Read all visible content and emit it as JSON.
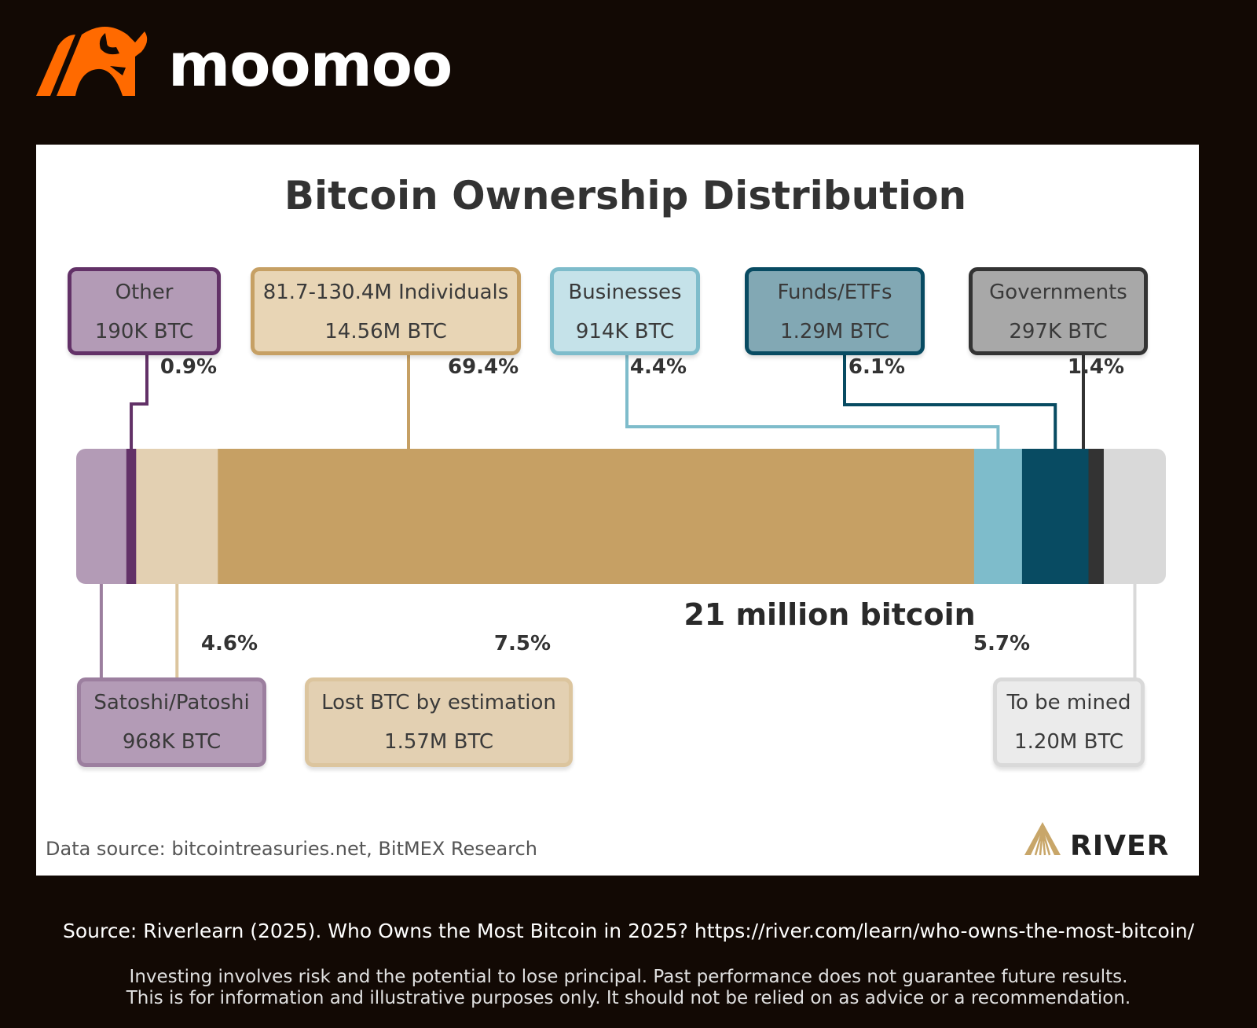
{
  "brand": {
    "name": "moomoo",
    "accent": "#FF6A00"
  },
  "chart_data": {
    "type": "bar",
    "orientation": "horizontal-stacked",
    "title": "Bitcoin Ownership Distribution",
    "total_label": "21 million bitcoin",
    "segments": [
      {
        "name": "Satoshi/Patoshi",
        "amount": "968K BTC",
        "percent": 4.6,
        "percent_label": "4.6%",
        "color": "#B39BB6",
        "border": "#9C7F9F",
        "position": "bottom"
      },
      {
        "name": "Other",
        "amount": "190K BTC",
        "percent": 0.9,
        "percent_label": "0.9%",
        "color": "#623167",
        "border": "#623167",
        "fill": "#B39BB6",
        "position": "top"
      },
      {
        "name": "Lost BTC by estimation",
        "amount": "1.57M BTC",
        "percent": 7.5,
        "percent_label": "7.5%",
        "color": "#E3D0B2",
        "border": "#DCC59E",
        "position": "bottom"
      },
      {
        "name": "81.7-130.4M Individuals",
        "amount": "14.56M BTC",
        "percent": 69.4,
        "percent_label": "69.4%",
        "color": "#C6A064",
        "border": "#C6A064",
        "fill": "#E8D5B5",
        "position": "top"
      },
      {
        "name": "Businesses",
        "amount": "914K BTC",
        "percent": 4.4,
        "percent_label": "4.4%",
        "color": "#7EBCCB",
        "border": "#7EBCCB",
        "fill": "#C5E2E9",
        "position": "top"
      },
      {
        "name": "Funds/ETFs",
        "amount": "1.29M BTC",
        "percent": 6.1,
        "percent_label": "6.1%",
        "color": "#084B62",
        "border": "#084B62",
        "fill": "#82A8B4",
        "position": "top"
      },
      {
        "name": "Governments",
        "amount": "297K BTC",
        "percent": 1.4,
        "percent_label": "1.4%",
        "color": "#333333",
        "border": "#333333",
        "fill": "#A8A8A8",
        "position": "top"
      },
      {
        "name": "To be mined",
        "amount": "1.20M BTC",
        "percent": 5.7,
        "percent_label": "5.7%",
        "color": "#D9D9D9",
        "border": "#D9D9D9",
        "fill": "#EBEBEB",
        "position": "bottom"
      }
    ]
  },
  "footer": {
    "data_source": "Data source: bitcointreasuries.net, BitMEX Research",
    "river_logo": "RIVER",
    "source": "Source: Riverlearn (2025). Who Owns the Most Bitcoin in 2025?  https://river.com/learn/who-owns-the-most-bitcoin/",
    "disclaimer_1": "Investing involves risk and the potential to lose principal. Past performance does not guarantee future results.",
    "disclaimer_2": "This is for information and illustrative purposes only. It should not be relied on as advice or a recommendation."
  }
}
